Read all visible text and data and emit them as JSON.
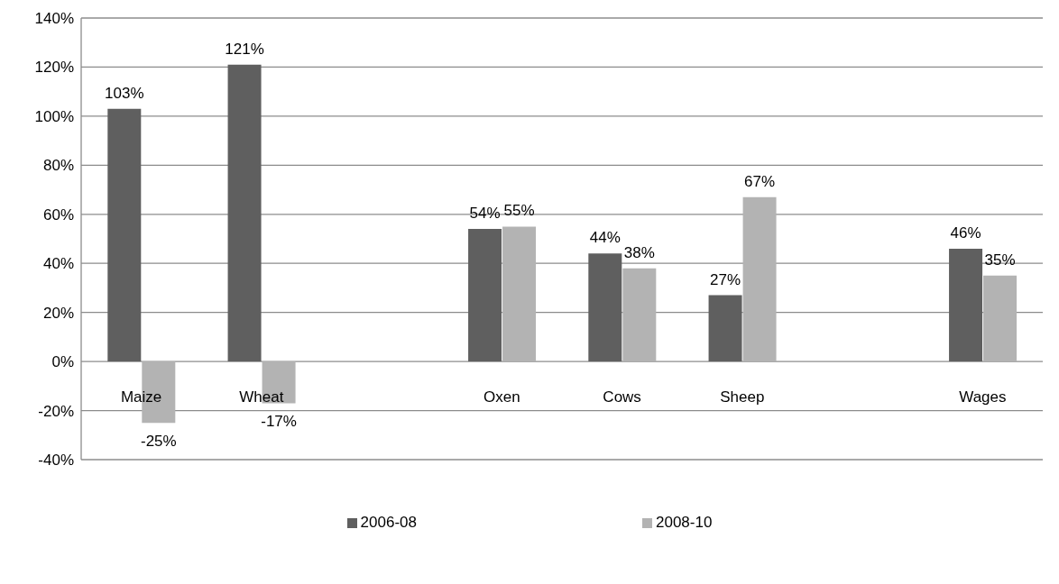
{
  "chart_data": {
    "type": "bar",
    "categories": [
      "Maize",
      "Wheat",
      null,
      "Oxen",
      "Cows",
      "Sheep",
      null,
      "Wages"
    ],
    "series": [
      {
        "name": "2006-08",
        "color": "#5f5f5f",
        "values": [
          103,
          121,
          null,
          54,
          44,
          27,
          null,
          46
        ],
        "value_labels": [
          "103%",
          "121%",
          null,
          "54%",
          "44%",
          "27%",
          null,
          "46%"
        ]
      },
      {
        "name": "2008-10",
        "color": "#b3b3b3",
        "values": [
          -25,
          -17,
          null,
          55,
          38,
          67,
          null,
          35
        ],
        "value_labels": [
          "-25%",
          "-17%",
          null,
          "55%",
          "38%",
          "67%",
          null,
          "35%"
        ]
      }
    ],
    "ylim": [
      -40,
      140
    ],
    "yticks": [
      {
        "value": -40,
        "label": "-40%"
      },
      {
        "value": -20,
        "label": "-20%"
      },
      {
        "value": 0,
        "label": "0%"
      },
      {
        "value": 20,
        "label": "20%"
      },
      {
        "value": 40,
        "label": "40%"
      },
      {
        "value": 60,
        "label": "60%"
      },
      {
        "value": 80,
        "label": "80%"
      },
      {
        "value": 100,
        "label": "100%"
      },
      {
        "value": 120,
        "label": "120%"
      },
      {
        "value": 140,
        "label": "140%"
      }
    ],
    "grid": "y",
    "legend": "bottom"
  }
}
